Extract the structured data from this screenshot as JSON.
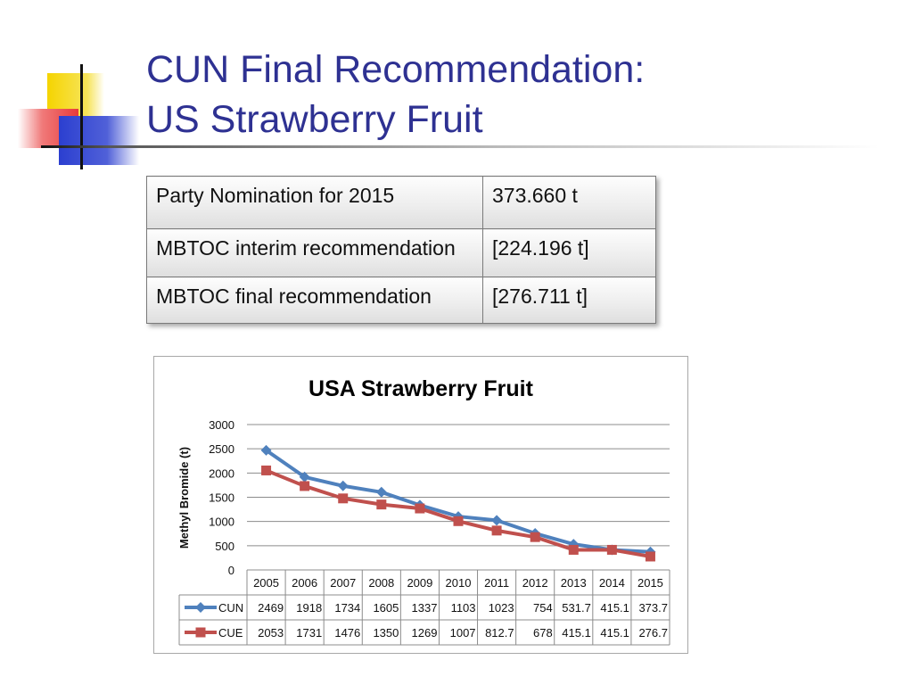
{
  "slide": {
    "title_line1": "CUN Final Recommendation:",
    "title_line2": "US Strawberry Fruit"
  },
  "recommendations": [
    {
      "label": "Party Nomination for 2015",
      "value": "373.660 t"
    },
    {
      "label": "MBTOC interim recommendation",
      "value": "[224.196 t]"
    },
    {
      "label": "MBTOC final recommendation",
      "value": "[276.711 t]"
    }
  ],
  "chart_data": {
    "type": "line",
    "title": "USA Strawberry Fruit",
    "ylabel": "Methyl Bromide (t)",
    "xlabel": "",
    "ylim": [
      0,
      3000
    ],
    "yticks": [
      0,
      500,
      1000,
      1500,
      2000,
      2500,
      3000
    ],
    "grid": true,
    "legend": "data-table",
    "categories": [
      "2005",
      "2006",
      "2007",
      "2008",
      "2009",
      "2010",
      "2011",
      "2012",
      "2013",
      "2014",
      "2015"
    ],
    "series": [
      {
        "name": "CUN",
        "color": "#4f81bd",
        "marker": "diamond",
        "values": [
          2469,
          1918,
          1734,
          1605,
          1337,
          1103,
          1023,
          754,
          531.7,
          415.1,
          373.7
        ],
        "labels": [
          "2469",
          "1918",
          "1734",
          "1605",
          "1337",
          "1103",
          "1023",
          "754",
          "531.7",
          "415.1",
          "373.7"
        ]
      },
      {
        "name": "CUE",
        "color": "#c0504d",
        "marker": "square",
        "values": [
          2053,
          1731,
          1476,
          1350,
          1269,
          1007,
          812.7,
          678,
          415.1,
          415.1,
          276.7
        ],
        "labels": [
          "2053",
          "1731",
          "1476",
          "1350",
          "1269",
          "1007",
          "812.7",
          "678",
          "415.1",
          "415.1",
          "276.7"
        ]
      }
    ]
  }
}
